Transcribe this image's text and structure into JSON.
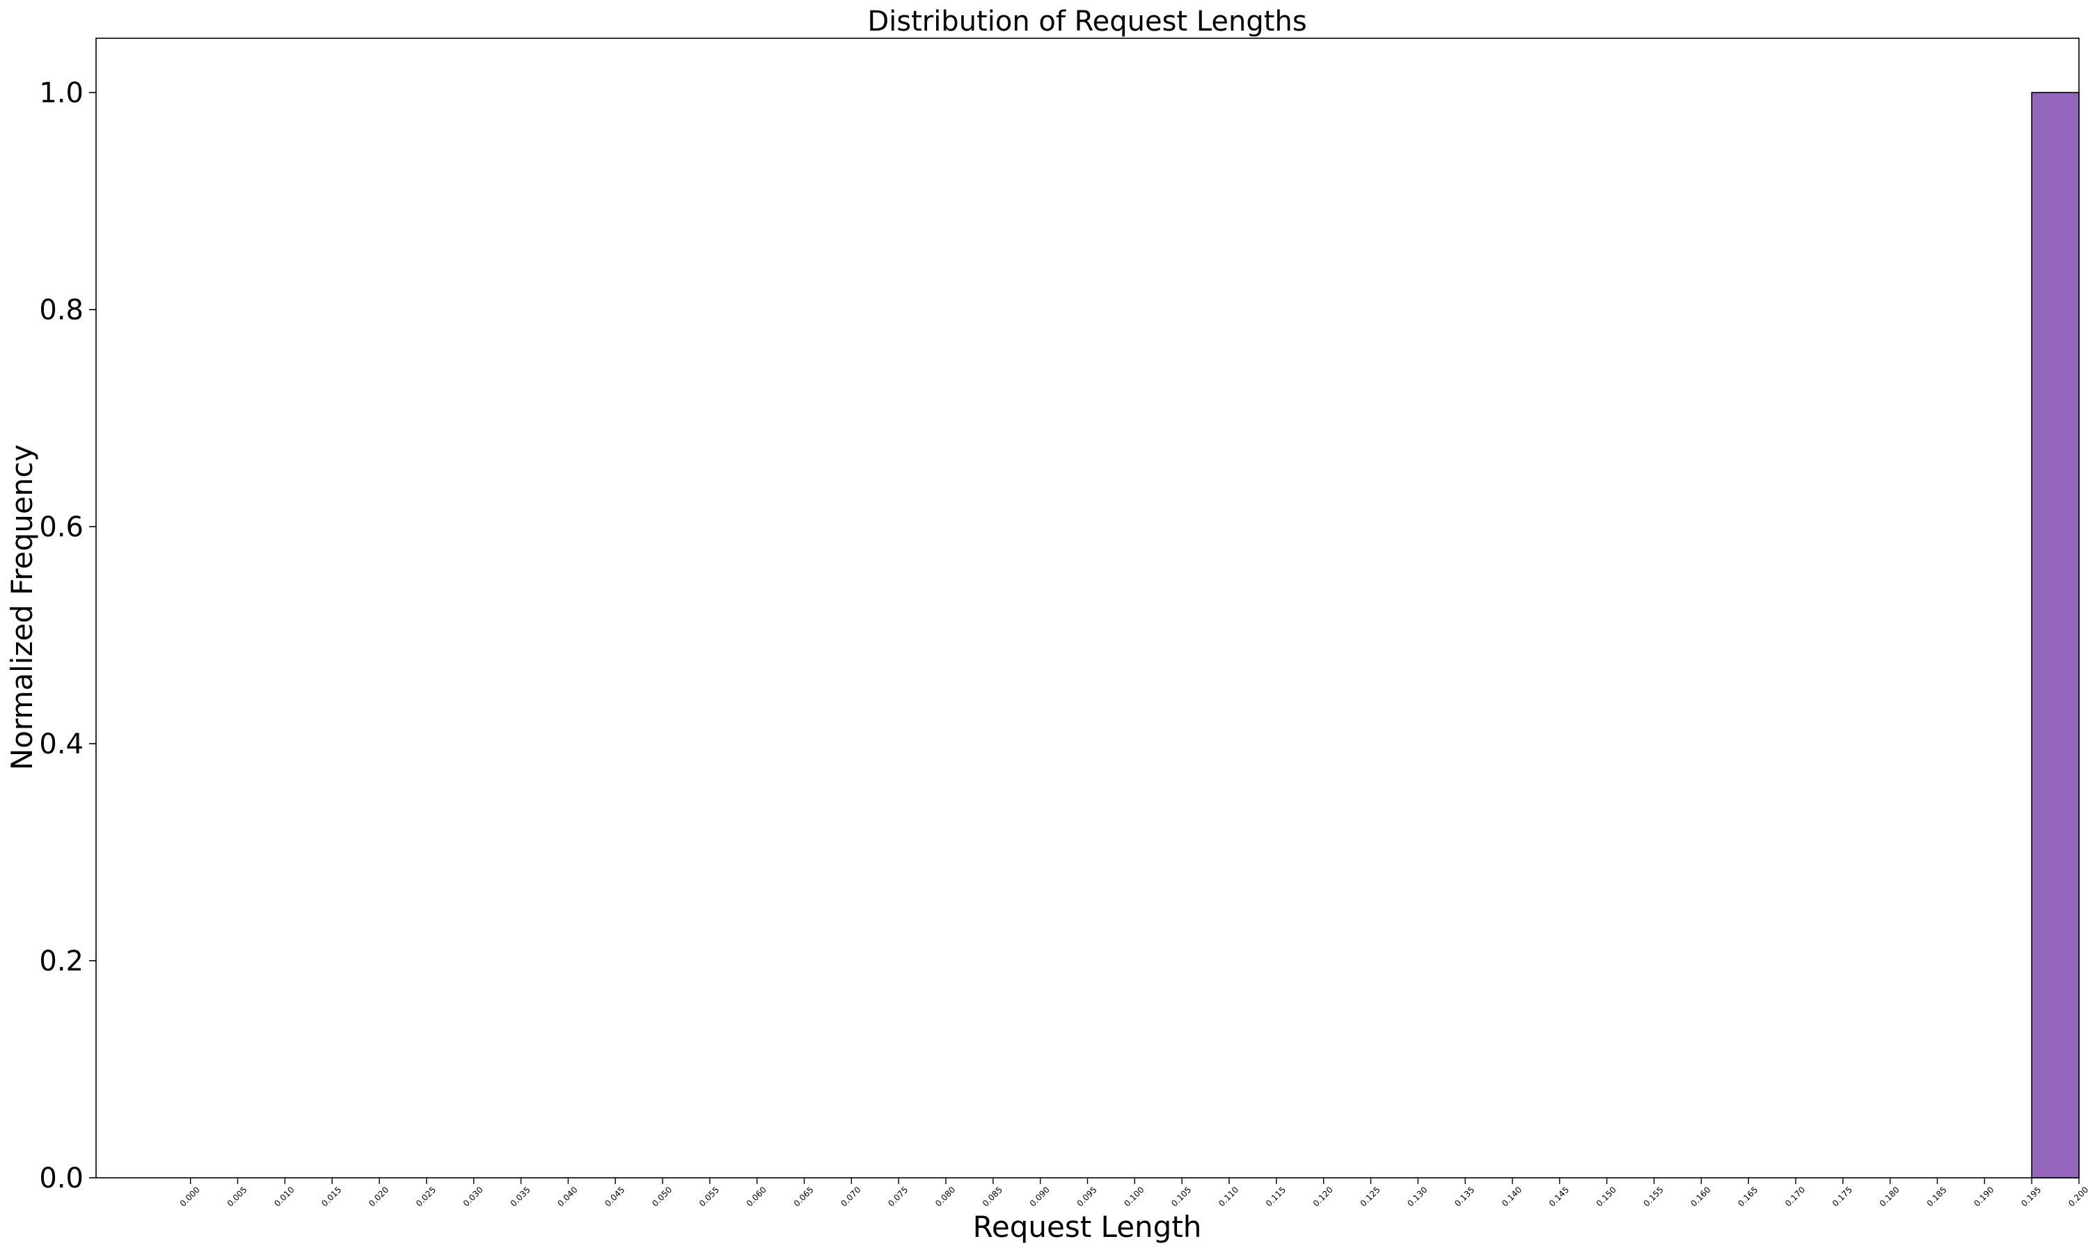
{
  "chart_data": {
    "type": "bar",
    "title": "Distribution of Request Lengths",
    "xlabel": "Request Length",
    "ylabel": "Normalized Frequency",
    "x_ticks": [
      "0.000",
      "0.005",
      "0.010",
      "0.015",
      "0.020",
      "0.025",
      "0.030",
      "0.035",
      "0.040",
      "0.045",
      "0.050",
      "0.055",
      "0.060",
      "0.065",
      "0.070",
      "0.075",
      "0.080",
      "0.085",
      "0.090",
      "0.095",
      "0.100",
      "0.105",
      "0.110",
      "0.115",
      "0.120",
      "0.125",
      "0.130",
      "0.135",
      "0.140",
      "0.145",
      "0.150",
      "0.155",
      "0.160",
      "0.165",
      "0.170",
      "0.175",
      "0.180",
      "0.185",
      "0.190",
      "0.195",
      "0.200"
    ],
    "y_ticks": [
      "0.0",
      "0.2",
      "0.4",
      "0.6",
      "0.8",
      "1.0"
    ],
    "xlim": [
      -0.01,
      0.2
    ],
    "ylim": [
      0,
      1.05
    ],
    "bins": [
      {
        "start": 0.195,
        "end": 0.2,
        "value": 1.0
      }
    ],
    "bar_color": "#9467bd",
    "bar_edge_color": "#000000",
    "grid": false,
    "legend": "none"
  }
}
